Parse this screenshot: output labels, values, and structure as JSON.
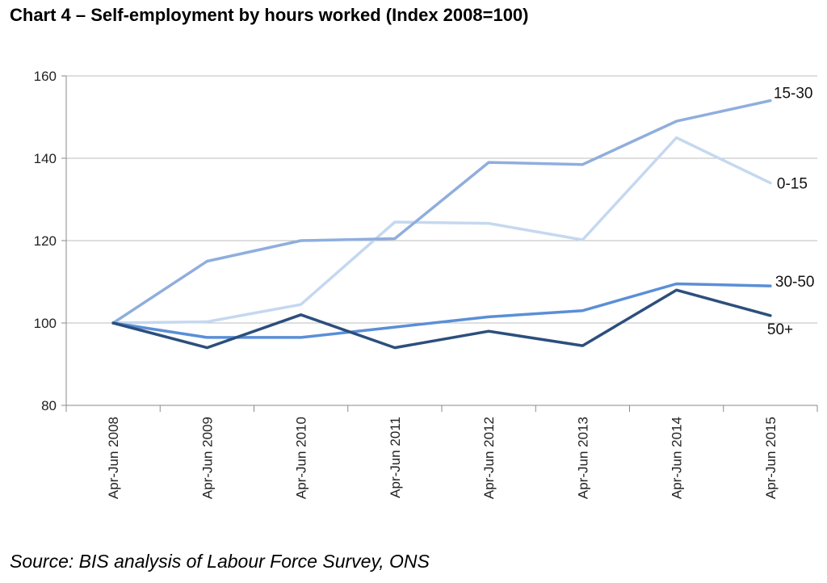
{
  "title": "Chart 4 – Self-employment by hours worked (Index 2008=100)",
  "source": "Source: BIS analysis of Labour Force Survey, ONS",
  "chart_data": {
    "type": "line",
    "title": "Chart 4 – Self-employment by hours worked (Index 2008=100)",
    "xlabel": "",
    "ylabel": "",
    "ylim": [
      80,
      160
    ],
    "yticks": [
      80,
      100,
      120,
      140,
      160
    ],
    "grid": true,
    "legend": "direct labels at line ends",
    "categories": [
      "Apr-Jun 2008",
      "Apr-Jun 2009",
      "Apr-Jun 2010",
      "Apr-Jun 2011",
      "Apr-Jun 2012",
      "Apr-Jun 2013",
      "Apr-Jun 2014",
      "Apr-Jun 2015"
    ],
    "series": [
      {
        "name": "15-30",
        "color": "#8faedd",
        "values": [
          100,
          115,
          120,
          120.5,
          139,
          138.5,
          149,
          154
        ]
      },
      {
        "name": "0-15",
        "color": "#c5d8f0",
        "values": [
          100,
          100.3,
          104.5,
          124.5,
          124.2,
          120.2,
          145,
          134
        ]
      },
      {
        "name": "30-50",
        "color": "#5a8fd6",
        "values": [
          100,
          96.5,
          96.5,
          99,
          101.5,
          103,
          109.5,
          109
        ]
      },
      {
        "name": "50+",
        "color": "#2c4f7c",
        "values": [
          100,
          94,
          102,
          94,
          98,
          94.5,
          108,
          101.8
        ]
      }
    ]
  }
}
